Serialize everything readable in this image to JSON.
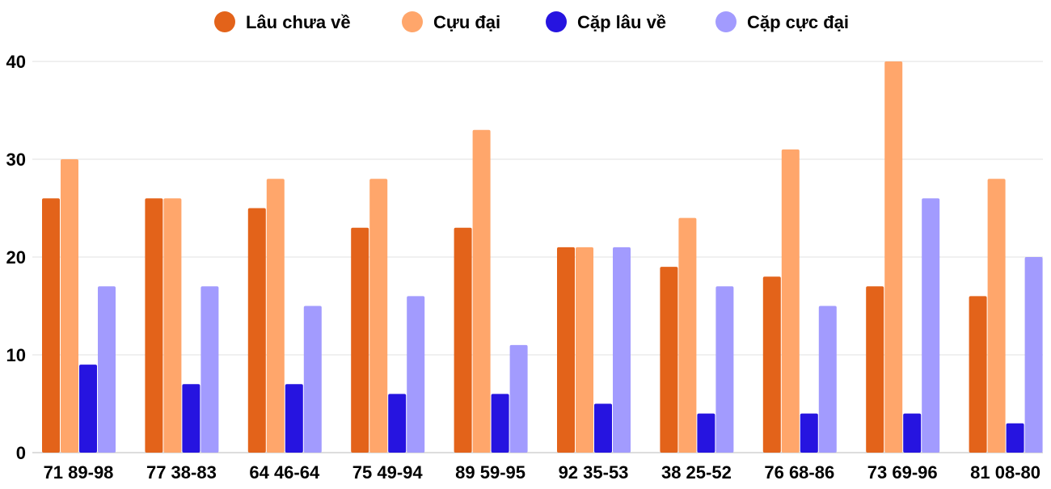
{
  "chart_data": {
    "type": "bar",
    "categories": [
      "71 89-98",
      "77 38-83",
      "64 46-64",
      "75 49-94",
      "89 59-95",
      "92 35-53",
      "38 25-52",
      "76 68-86",
      "73 69-96",
      "81 08-80"
    ],
    "series": [
      {
        "name": "Lâu chưa về",
        "color": "#e3631a",
        "values": [
          26,
          26,
          25,
          23,
          23,
          21,
          19,
          18,
          17,
          16
        ]
      },
      {
        "name": "Cựu đại",
        "color": "#ffa66b",
        "values": [
          30,
          26,
          28,
          28,
          33,
          21,
          24,
          31,
          40,
          28
        ]
      },
      {
        "name": "Cặp lâu về",
        "color": "#2614e0",
        "values": [
          9,
          7,
          7,
          6,
          6,
          5,
          4,
          4,
          4,
          3
        ]
      },
      {
        "name": "Cặp cực đại",
        "color": "#a29bfe",
        "values": [
          17,
          17,
          15,
          16,
          11,
          21,
          17,
          15,
          26,
          20
        ]
      }
    ],
    "ylim": [
      0,
      40
    ],
    "yticks": [
      0,
      10,
      20,
      30,
      40
    ],
    "grid": true,
    "legend": "top"
  }
}
